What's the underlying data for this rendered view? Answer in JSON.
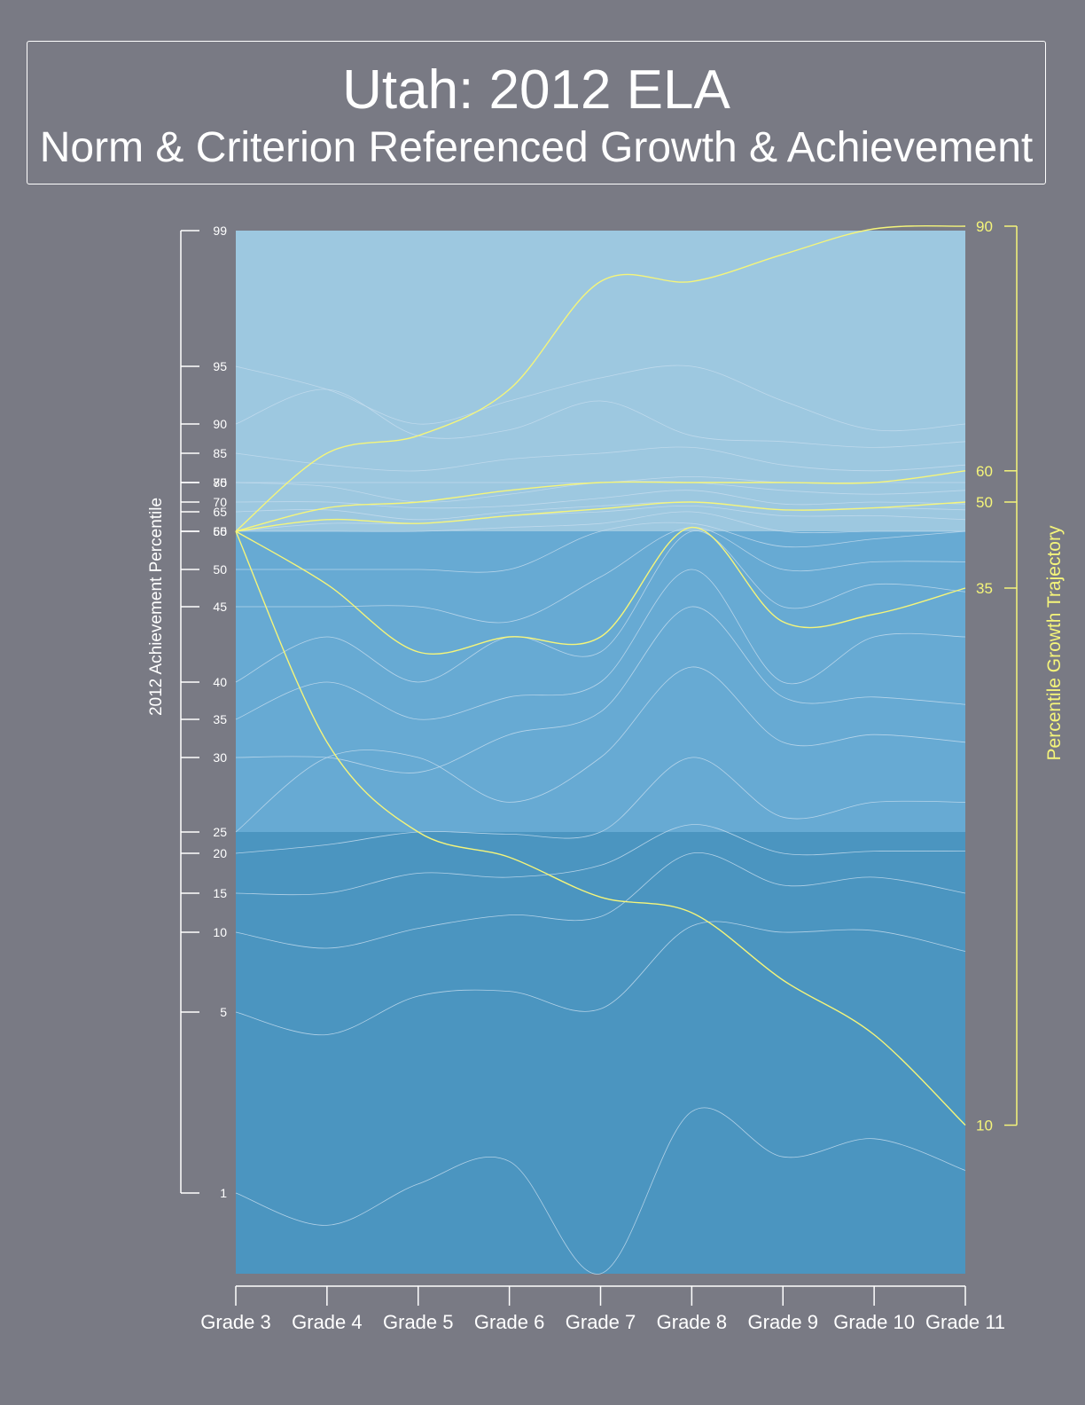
{
  "title": "Utah: 2012 ELA",
  "subtitle": "Norm & Criterion Referenced Growth & Achievement",
  "colors": {
    "background": "#797a84",
    "band_top": "#9dc8e0",
    "band_middle": "#67aad3",
    "band_bottom": "#4b95c0",
    "percentile_curve": "#c4dced",
    "trajectory_curve": "#f5f57a",
    "axis_left": "#ffffff",
    "axis_right": "#f5f57a"
  },
  "chart_data": {
    "type": "line",
    "categories": [
      "Grade 3",
      "Grade 4",
      "Grade 5",
      "Grade 6",
      "Grade 7",
      "Grade 8",
      "Grade 9",
      "Grade 10",
      "Grade 11"
    ],
    "ylabel": "2012 Achievement Percentile",
    "y2label": "Percentile Growth Trajectory",
    "ylim": [
      0,
      99
    ],
    "y_ticks": [
      1,
      5,
      10,
      15,
      20,
      25,
      30,
      35,
      40,
      45,
      50,
      55,
      60,
      65,
      70,
      75,
      80,
      85,
      90,
      95,
      99
    ],
    "y_tick_labels": [
      "1",
      "5",
      "10",
      "15",
      "20",
      "25",
      "30",
      "35",
      "40",
      "45",
      "50",
      "55",
      "60",
      "65",
      "70",
      "75",
      "80",
      "85",
      "90",
      "95",
      "99"
    ],
    "y2_ticks": [
      10,
      35,
      50,
      60,
      90
    ],
    "y2_tick_labels": [
      "10",
      "35",
      "50",
      "60",
      "90"
    ],
    "bands": [
      {
        "from": 0,
        "to": 25
      },
      {
        "from": 25,
        "to": 60
      },
      {
        "from": 60,
        "to": 99
      }
    ],
    "percentile_curves": [
      {
        "values": [
          1,
          0.6,
          1.2,
          1.7,
          0,
          2.8,
          1.8,
          2.2,
          1.5
        ]
      },
      {
        "values": [
          5,
          4.5,
          6,
          6.3,
          5.2,
          10.8,
          10,
          10.2,
          8.8
        ]
      },
      {
        "values": [
          10,
          9,
          10.5,
          12.2,
          12,
          20,
          16,
          17,
          15
        ]
      },
      {
        "values": [
          15,
          15,
          17.5,
          17,
          18.5,
          25.5,
          20,
          20.5,
          20.5
        ]
      },
      {
        "values": [
          20,
          22,
          25,
          24.5,
          25,
          30,
          26,
          27,
          27
        ]
      },
      {
        "values": [
          25,
          30,
          30,
          27,
          30,
          41,
          32,
          33,
          32
        ]
      },
      {
        "values": [
          30,
          30,
          29,
          33,
          36,
          45,
          38,
          38,
          37
        ]
      },
      {
        "values": [
          35,
          40,
          35,
          38,
          40,
          50,
          40,
          43,
          43
        ]
      },
      {
        "values": [
          40,
          43,
          40,
          43,
          42,
          55,
          45,
          48,
          47
        ]
      },
      {
        "values": [
          45,
          45,
          45,
          44,
          49,
          61,
          50,
          51,
          51
        ]
      },
      {
        "values": [
          50,
          50,
          50,
          50,
          55,
          62,
          53,
          54,
          56
        ]
      },
      {
        "values": [
          55,
          57,
          58,
          61,
          62,
          65,
          59,
          60,
          60
        ]
      },
      {
        "values": [
          60,
          62,
          62,
          64,
          65,
          68,
          64,
          64,
          63
        ]
      },
      {
        "values": [
          65,
          66,
          63,
          65,
          68,
          70,
          66,
          67,
          66
        ]
      },
      {
        "values": [
          70,
          70,
          67,
          68,
          71,
          73,
          69,
          70,
          69
        ]
      },
      {
        "values": [
          75,
          74,
          70,
          72,
          75,
          77,
          73,
          72,
          73
        ]
      },
      {
        "values": [
          78,
          78,
          75,
          77,
          79,
          81,
          77,
          77,
          77
        ]
      },
      {
        "values": [
          85,
          83,
          82,
          84,
          85,
          86,
          83,
          82,
          83
        ]
      },
      {
        "values": [
          90,
          93,
          88,
          89,
          92,
          88,
          87,
          86,
          87
        ]
      },
      {
        "values": [
          95,
          93,
          90,
          92,
          94,
          95,
          92,
          89,
          90
        ]
      }
    ],
    "trajectory_curves": [
      {
        "label": "90",
        "values": [
          60,
          85,
          88,
          93,
          97.5,
          97.5,
          98.3,
          99.2,
          99.5
        ]
      },
      {
        "label": "60",
        "values": [
          60,
          67,
          70,
          73,
          75.5,
          79,
          76,
          78,
          82
        ]
      },
      {
        "label": "50",
        "values": [
          60,
          63,
          62,
          64,
          66.5,
          70,
          66,
          67,
          70
        ]
      },
      {
        "label": "35",
        "values": [
          60,
          48,
          42,
          43,
          43,
          61,
          44,
          44.5,
          47.5
        ]
      },
      {
        "label": "10",
        "values": [
          60,
          32,
          25,
          19.5,
          14.5,
          12.5,
          7,
          4.5,
          2.5
        ]
      }
    ]
  }
}
